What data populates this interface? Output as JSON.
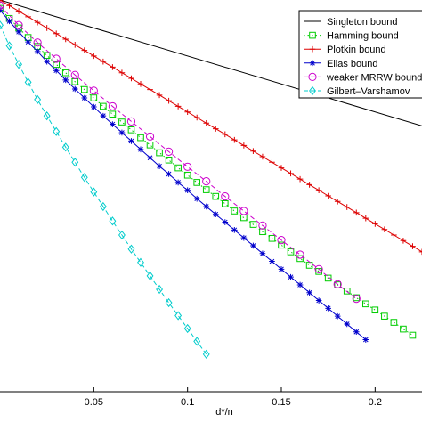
{
  "chart_data": {
    "type": "line",
    "title": "",
    "xlabel": "d*/n",
    "ylabel": "",
    "xlim": [
      0.0,
      0.225
    ],
    "ylim": [
      0.3,
      1.0
    ],
    "x_ticks": [
      0.05,
      0.1,
      0.15,
      0.2
    ],
    "x_tick_labels": [
      "0.05",
      "0.1",
      "0.15",
      "0.2"
    ],
    "grid": false,
    "legend_position": "top-right",
    "series": [
      {
        "name": "Singleton bound",
        "color": "#000000",
        "marker": "none",
        "linestyle": "solid",
        "x": [
          0.0,
          0.225
        ],
        "y": [
          1.0,
          0.775
        ]
      },
      {
        "name": "Hamming bound",
        "color": "#00cc00",
        "marker": "square",
        "linestyle": "dotted",
        "x": [
          0.0,
          0.005,
          0.01,
          0.015,
          0.02,
          0.025,
          0.03,
          0.035,
          0.04,
          0.045,
          0.05,
          0.055,
          0.06,
          0.065,
          0.07,
          0.075,
          0.08,
          0.085,
          0.09,
          0.095,
          0.1,
          0.105,
          0.11,
          0.115,
          0.12,
          0.125,
          0.13,
          0.135,
          0.14,
          0.145,
          0.15,
          0.155,
          0.16,
          0.165,
          0.17,
          0.175,
          0.18,
          0.185,
          0.19,
          0.195,
          0.2,
          0.205,
          0.21,
          0.215,
          0.22
        ],
        "y": [
          0.985,
          0.967,
          0.95,
          0.933,
          0.917,
          0.901,
          0.885,
          0.87,
          0.854,
          0.84,
          0.825,
          0.81,
          0.796,
          0.782,
          0.768,
          0.754,
          0.741,
          0.727,
          0.714,
          0.7,
          0.687,
          0.674,
          0.661,
          0.649,
          0.636,
          0.623,
          0.611,
          0.599,
          0.586,
          0.574,
          0.562,
          0.55,
          0.538,
          0.526,
          0.515,
          0.503,
          0.491,
          0.48,
          0.468,
          0.457,
          0.446,
          0.435,
          0.424,
          0.412,
          0.401
        ]
      },
      {
        "name": "Plotkin bound",
        "color": "#dd0000",
        "marker": "plus",
        "linestyle": "solid",
        "x": [
          0.0,
          0.005,
          0.01,
          0.015,
          0.02,
          0.025,
          0.03,
          0.035,
          0.04,
          0.045,
          0.05,
          0.055,
          0.06,
          0.065,
          0.07,
          0.075,
          0.08,
          0.085,
          0.09,
          0.095,
          0.1,
          0.105,
          0.11,
          0.115,
          0.12,
          0.125,
          0.13,
          0.135,
          0.14,
          0.145,
          0.15,
          0.155,
          0.16,
          0.165,
          0.17,
          0.175,
          0.18,
          0.185,
          0.19,
          0.195,
          0.2,
          0.205,
          0.21,
          0.215,
          0.22,
          0.225
        ],
        "y": [
          1.0,
          0.99,
          0.98,
          0.97,
          0.96,
          0.95,
          0.94,
          0.93,
          0.92,
          0.91,
          0.9,
          0.89,
          0.88,
          0.87,
          0.86,
          0.85,
          0.84,
          0.83,
          0.82,
          0.81,
          0.8,
          0.79,
          0.78,
          0.77,
          0.76,
          0.75,
          0.74,
          0.73,
          0.72,
          0.71,
          0.7,
          0.69,
          0.68,
          0.67,
          0.66,
          0.65,
          0.64,
          0.63,
          0.62,
          0.61,
          0.6,
          0.59,
          0.58,
          0.57,
          0.56,
          0.55
        ]
      },
      {
        "name": "Elias bound",
        "color": "#0000cc",
        "marker": "star",
        "linestyle": "solid",
        "x": [
          0.0,
          0.005,
          0.01,
          0.015,
          0.02,
          0.025,
          0.03,
          0.035,
          0.04,
          0.045,
          0.05,
          0.055,
          0.06,
          0.065,
          0.07,
          0.075,
          0.08,
          0.085,
          0.09,
          0.095,
          0.1,
          0.105,
          0.11,
          0.115,
          0.12,
          0.125,
          0.13,
          0.135,
          0.14,
          0.145,
          0.15,
          0.155,
          0.16,
          0.165,
          0.17,
          0.175,
          0.18,
          0.185,
          0.19,
          0.195
        ],
        "y": [
          0.982,
          0.962,
          0.943,
          0.925,
          0.908,
          0.89,
          0.874,
          0.857,
          0.841,
          0.825,
          0.809,
          0.793,
          0.778,
          0.763,
          0.748,
          0.733,
          0.718,
          0.703,
          0.689,
          0.674,
          0.66,
          0.645,
          0.631,
          0.617,
          0.603,
          0.589,
          0.575,
          0.561,
          0.547,
          0.533,
          0.519,
          0.505,
          0.491,
          0.477,
          0.463,
          0.449,
          0.435,
          0.421,
          0.407,
          0.393
        ]
      },
      {
        "name": "weaker MRRW bound",
        "color": "#cc00cc",
        "marker": "circle",
        "linestyle": "dashed",
        "x": [
          0.0,
          0.01,
          0.02,
          0.03,
          0.04,
          0.05,
          0.06,
          0.07,
          0.08,
          0.09,
          0.1,
          0.11,
          0.12,
          0.13,
          0.14,
          0.15,
          0.16,
          0.17,
          0.18,
          0.19
        ],
        "y": [
          0.99,
          0.955,
          0.924,
          0.895,
          0.866,
          0.838,
          0.81,
          0.783,
          0.756,
          0.729,
          0.702,
          0.676,
          0.649,
          0.623,
          0.597,
          0.571,
          0.545,
          0.519,
          0.492,
          0.466
        ]
      },
      {
        "name": "Gilbert–Varshamov",
        "color": "#00cccc",
        "marker": "diamond",
        "linestyle": "dashed",
        "x": [
          0.0,
          0.005,
          0.01,
          0.015,
          0.02,
          0.025,
          0.03,
          0.035,
          0.04,
          0.045,
          0.05,
          0.055,
          0.06,
          0.065,
          0.07,
          0.075,
          0.08,
          0.085,
          0.09,
          0.095,
          0.1,
          0.105,
          0.11
        ],
        "y": [
          0.955,
          0.918,
          0.885,
          0.853,
          0.822,
          0.793,
          0.765,
          0.737,
          0.71,
          0.683,
          0.657,
          0.631,
          0.605,
          0.58,
          0.555,
          0.531,
          0.507,
          0.483,
          0.459,
          0.436,
          0.413,
          0.39,
          0.367
        ]
      }
    ]
  }
}
